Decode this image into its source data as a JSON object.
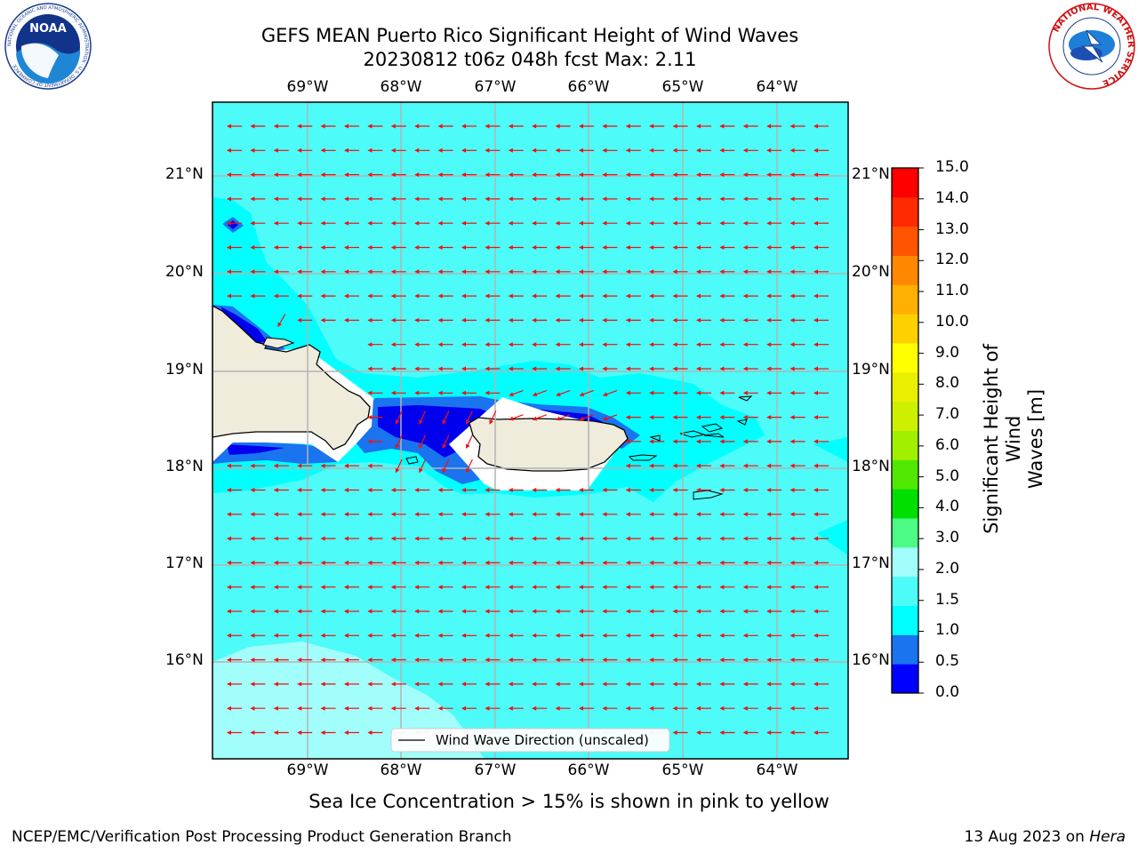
{
  "header": {
    "title_line1": "GEFS MEAN Puerto Rico Significant Height of Wind Waves",
    "title_line2": "20230812 t06z 048h fcst   Max: 2.11"
  },
  "logos": {
    "noaa_text": "NOAA",
    "noaa_ring_text": "NATIONAL OCEANIC AND ATMOSPHERIC ADMINISTRATION · U.S. DEPARTMENT OF COMMERCE",
    "nws_ring_text": "NATIONAL WEATHER SERVICE"
  },
  "map": {
    "lon_ticks": [
      "69°W",
      "68°W",
      "67°W",
      "66°W",
      "65°W",
      "64°W"
    ],
    "lat_ticks": [
      "21°N",
      "20°N",
      "19°N",
      "18°N",
      "17°N",
      "16°N"
    ],
    "legend_label": "Wind Wave Direction (unscaled)",
    "colors": {
      "ocean_1_0_1_5": "#00ffff",
      "ocean_1_5_2_0": "#4dfbf8",
      "ocean_2_0_2_5": "#a2fefb",
      "deep_0_0_0_5": "#0000ee",
      "deep_0_5_1_0": "#1a74f0",
      "land": "#efecdc",
      "arrows": "#ee1111",
      "grid": "#b4b4b4"
    }
  },
  "colorbar": {
    "label_line1": "Significant Height of Wind",
    "label_line2": "Waves [m]",
    "ticks": [
      "0.0",
      "0.5",
      "1.0",
      "1.5",
      "2.0",
      "3.0",
      "4.0",
      "5.0",
      "6.0",
      "7.0",
      "8.0",
      "9.0",
      "10.0",
      "11.0",
      "12.0",
      "13.0",
      "14.0",
      "15.0"
    ],
    "colors": [
      "#0000ff",
      "#1a74f0",
      "#00ffff",
      "#4dfbf8",
      "#a2fefb",
      "#4cfb86",
      "#00e000",
      "#50e800",
      "#a0f000",
      "#ccf000",
      "#e8f000",
      "#ffff00",
      "#ffd000",
      "#ffb000",
      "#ff8800",
      "#ff5500",
      "#ff2a00",
      "#ff0000"
    ]
  },
  "footer": {
    "sea_ice_note": "Sea Ice Concentration > 15% is shown in pink to yellow",
    "branch": "NCEP/EMC/Verification Post Processing Product Generation Branch",
    "date_prefix": "13 Aug 2023 on ",
    "host": "Hera"
  }
}
